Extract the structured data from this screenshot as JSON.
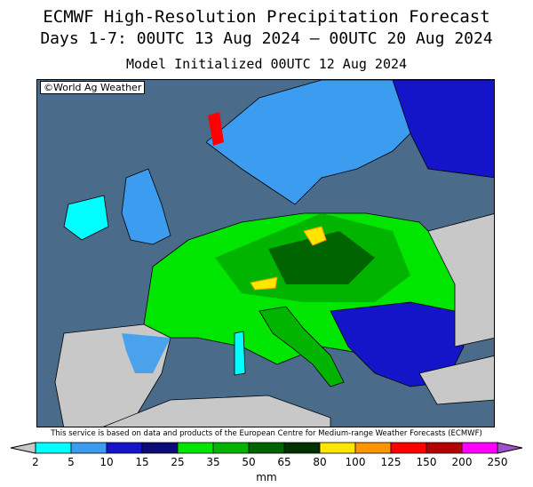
{
  "header": {
    "title": "ECMWF High-Resolution Precipitation Forecast",
    "period": "Days 1-7: 00UTC 13 Aug 2024 — 00UTC 20 Aug 2024",
    "init": "Model Initialized 00UTC 12 Aug 2024"
  },
  "map": {
    "credit": "©World Ag Weather",
    "region": "Europe",
    "colors": {
      "ocean": "#4a6b8a",
      "land_dry": "#c8c8c8"
    }
  },
  "disclaimer": "This service is based on data and products of the European Centre for Medium-range Weather Forecasts (ECMWF)",
  "legend": {
    "unit": "mm",
    "ticks": [
      "2",
      "5",
      "10",
      "15",
      "25",
      "35",
      "50",
      "65",
      "80",
      "100",
      "125",
      "150",
      "200",
      "250"
    ],
    "colors": [
      "#00ffff",
      "#3c9cf0",
      "#1414c8",
      "#0a0a78",
      "#00e600",
      "#00b400",
      "#006400",
      "#003200",
      "#ffe600",
      "#ff9600",
      "#ff0000",
      "#b40000",
      "#ff00ff",
      "#8c0082",
      "#a050c8"
    ]
  }
}
